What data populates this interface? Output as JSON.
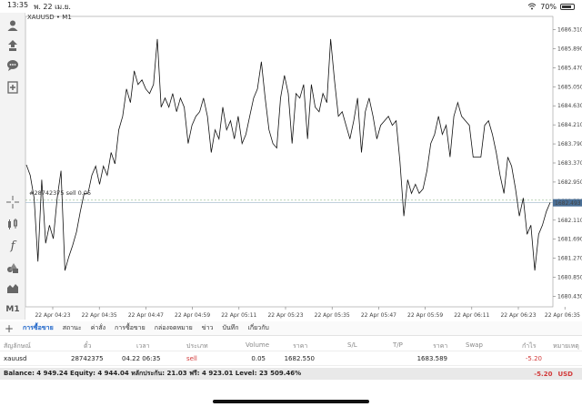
{
  "status": {
    "time": "13:35",
    "date": "พ. 22 เม.ย.",
    "battery": "70%",
    "battery_level": 0.7
  },
  "chart": {
    "symbol": "XAUUSD",
    "timeframe": "M1",
    "order_line_label": "#28742375 sell 0.05",
    "current_price_tag": "1682.493",
    "order_price": 1682.55,
    "bid_price": 1682.493
  },
  "sidebar": {
    "timeframe_label": "M1"
  },
  "tabs": [
    "การซื้อขาย",
    "สถานะ",
    "ค่าสั่ง",
    "การซื้อขาย",
    "กล่องจดหมาย",
    "ข่าว",
    "บันทึก",
    "เกี่ยวกับ"
  ],
  "table": {
    "headers": [
      "สัญลักษณ์",
      "ตั๋ว",
      "เวลา",
      "ประเภท",
      "Volume",
      "ราคา",
      "S/L",
      "T/P",
      "ราคา",
      "Swap",
      "กำไร",
      "หมายเหตุ"
    ],
    "row": {
      "symbol": "xauusd",
      "ticket": "28742375",
      "time": "04.22 06:35",
      "type": "sell",
      "volume": "0.05",
      "open_price": "1682.550",
      "sl": "",
      "tp": "",
      "current_price": "1683.589",
      "swap": "",
      "profit": "-5.20",
      "comment": ""
    }
  },
  "balance": {
    "text": "Balance: 4 949.24 Equity: 4 944.04 หลักประกัน: 21.03 ฟรี: 4 923.01 Level: 23 509.46%",
    "profit": "-5.20",
    "currency": "USD"
  },
  "chart_data": {
    "type": "line",
    "y_ticks": [
      "1686.310",
      "1685.890",
      "1685.470",
      "1685.050",
      "1684.630",
      "1684.210",
      "1683.790",
      "1683.370",
      "1682.950",
      "1682.530",
      "1682.110",
      "1681.690",
      "1681.270",
      "1680.850",
      "1680.430"
    ],
    "x_ticks": [
      "22 Apr 04:23",
      "22 Apr 04:35",
      "22 Apr 04:47",
      "22 Apr 04:59",
      "22 Apr 05:11",
      "22 Apr 05:23",
      "22 Apr 05:35",
      "22 Apr 05:47",
      "22 Apr 05:59",
      "22 Apr 06:11",
      "22 Apr 06:23",
      "22 Apr 06:35"
    ],
    "ylim": [
      1680.2,
      1686.6
    ],
    "values": [
      1683.33,
      1683.1,
      1682.6,
      1681.2,
      1683.0,
      1681.6,
      1682.0,
      1681.7,
      1682.6,
      1683.2,
      1681.0,
      1681.3,
      1681.55,
      1681.85,
      1682.3,
      1682.7,
      1682.7,
      1683.1,
      1683.3,
      1682.9,
      1683.3,
      1683.1,
      1683.6,
      1683.35,
      1684.1,
      1684.4,
      1685.0,
      1684.7,
      1685.4,
      1685.1,
      1685.2,
      1685.0,
      1684.9,
      1685.1,
      1686.1,
      1684.6,
      1684.8,
      1684.6,
      1684.9,
      1684.5,
      1684.8,
      1684.6,
      1683.8,
      1684.2,
      1684.4,
      1684.5,
      1684.8,
      1684.4,
      1683.6,
      1684.1,
      1683.9,
      1684.6,
      1684.1,
      1684.3,
      1683.9,
      1684.4,
      1683.8,
      1684.0,
      1684.4,
      1684.8,
      1685.0,
      1685.6,
      1684.8,
      1684.1,
      1683.8,
      1683.7,
      1684.8,
      1685.3,
      1684.9,
      1683.8,
      1684.9,
      1684.8,
      1685.1,
      1683.9,
      1685.1,
      1684.6,
      1684.5,
      1684.9,
      1684.7,
      1686.1,
      1685.2,
      1684.4,
      1684.5,
      1684.2,
      1683.9,
      1684.3,
      1684.8,
      1683.6,
      1684.5,
      1684.8,
      1684.4,
      1683.9,
      1684.2,
      1684.3,
      1684.4,
      1684.2,
      1684.3,
      1683.4,
      1682.2,
      1683.0,
      1682.7,
      1682.9,
      1682.7,
      1682.8,
      1683.2,
      1683.8,
      1684.0,
      1684.4,
      1684.0,
      1684.2,
      1683.5,
      1684.4,
      1684.7,
      1684.4,
      1684.3,
      1684.2,
      1683.5,
      1683.5,
      1683.5,
      1684.2,
      1684.3,
      1684.0,
      1683.6,
      1683.1,
      1682.7,
      1683.5,
      1683.3,
      1682.8,
      1682.2,
      1682.6,
      1681.8,
      1682.0,
      1681.0,
      1681.8,
      1682.0,
      1682.3,
      1682.5
    ]
  }
}
